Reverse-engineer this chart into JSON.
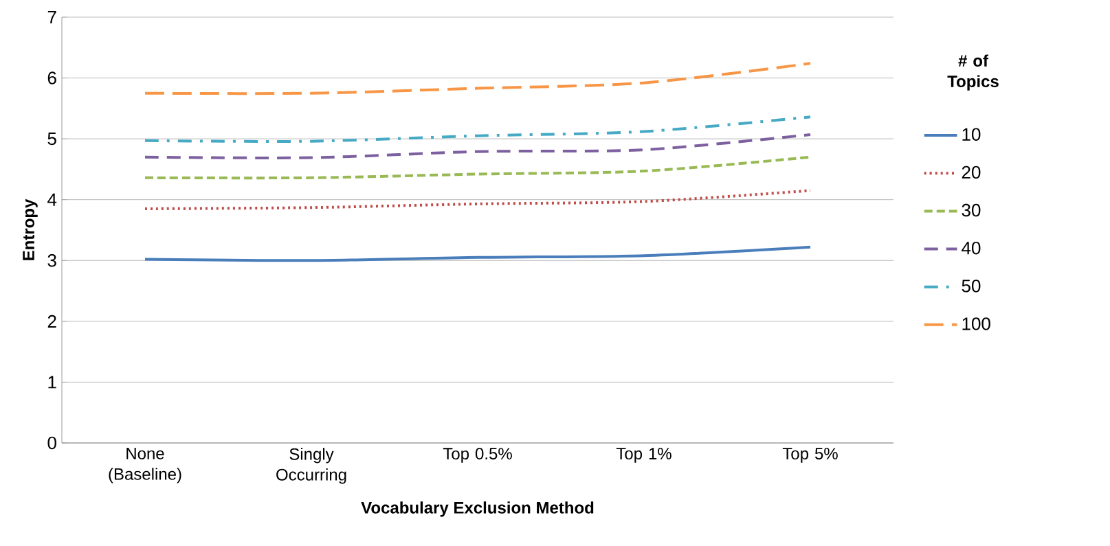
{
  "chart_data": {
    "type": "line",
    "xlabel": "Vocabulary Exclusion Method",
    "ylabel": "Entropy",
    "legend_title": "# of Topics",
    "categories": [
      "None (Baseline)",
      "Singly Occurring",
      "Top 0.5%",
      "Top 1%",
      "Top 5%"
    ],
    "ylim": [
      0,
      7
    ],
    "yticks": [
      0,
      1,
      2,
      3,
      4,
      5,
      6,
      7
    ],
    "grid": "y",
    "legend": "right",
    "marker": "none",
    "series": [
      {
        "name": "10",
        "color": "#4a7ebb",
        "line_style": "solid",
        "values": [
          3.02,
          3.0,
          3.05,
          3.08,
          3.22
        ]
      },
      {
        "name": "20",
        "color": "#be4b48",
        "line_style": "dotted",
        "values": [
          3.85,
          3.87,
          3.93,
          3.97,
          4.15
        ]
      },
      {
        "name": "30",
        "color": "#98b954",
        "line_style": "dashed",
        "values": [
          4.36,
          4.36,
          4.42,
          4.47,
          4.7
        ]
      },
      {
        "name": "40",
        "color": "#7d60a0",
        "line_style": "long dashed",
        "values": [
          4.7,
          4.69,
          4.79,
          4.82,
          5.07
        ]
      },
      {
        "name": "50",
        "color": "#46aac5",
        "line_style": "dashdot",
        "values": [
          4.97,
          4.96,
          5.05,
          5.12,
          5.36
        ]
      },
      {
        "name": "100",
        "color": "#f79646",
        "line_style": "very long dashed",
        "values": [
          5.75,
          5.75,
          5.83,
          5.92,
          6.24
        ]
      }
    ]
  }
}
